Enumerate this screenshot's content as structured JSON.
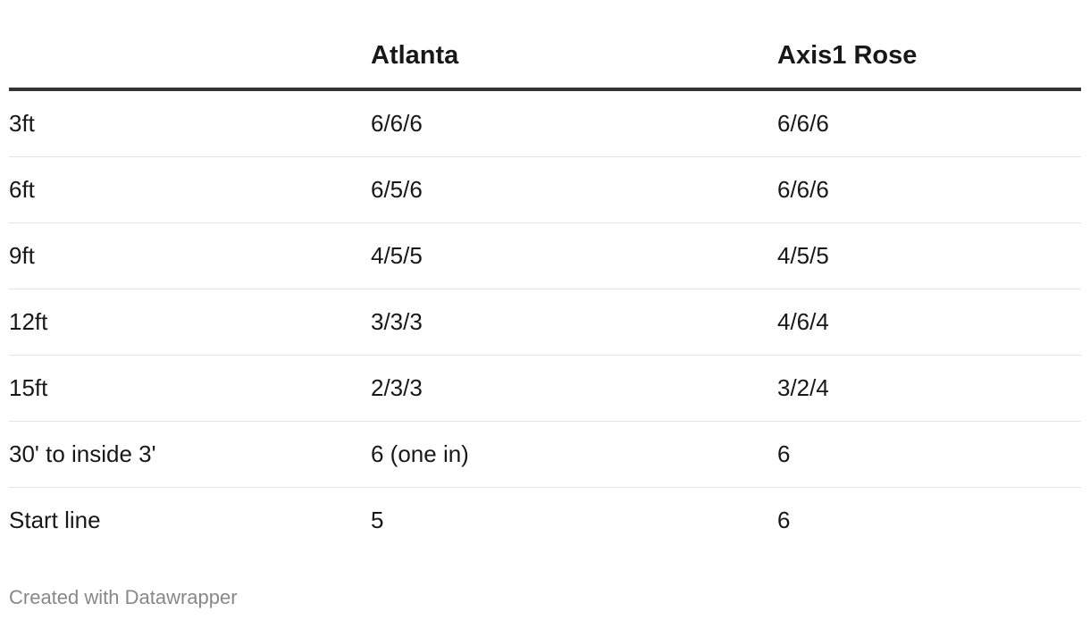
{
  "chart_data": {
    "type": "table",
    "columns": [
      "",
      "Atlanta",
      "Axis1 Rose"
    ],
    "rows": [
      [
        "3ft",
        "6/6/6",
        "6/6/6"
      ],
      [
        "6ft",
        "6/5/6",
        "6/6/6"
      ],
      [
        "9ft",
        "4/5/5",
        "4/5/5"
      ],
      [
        "12ft",
        "3/3/3",
        "4/6/4"
      ],
      [
        "15ft",
        "2/3/3",
        "3/2/4"
      ],
      [
        "30' to inside 3'",
        "6 (one in)",
        "6"
      ],
      [
        "Start line",
        "5",
        "6"
      ]
    ]
  },
  "footer": {
    "credit": "Created with Datawrapper"
  }
}
